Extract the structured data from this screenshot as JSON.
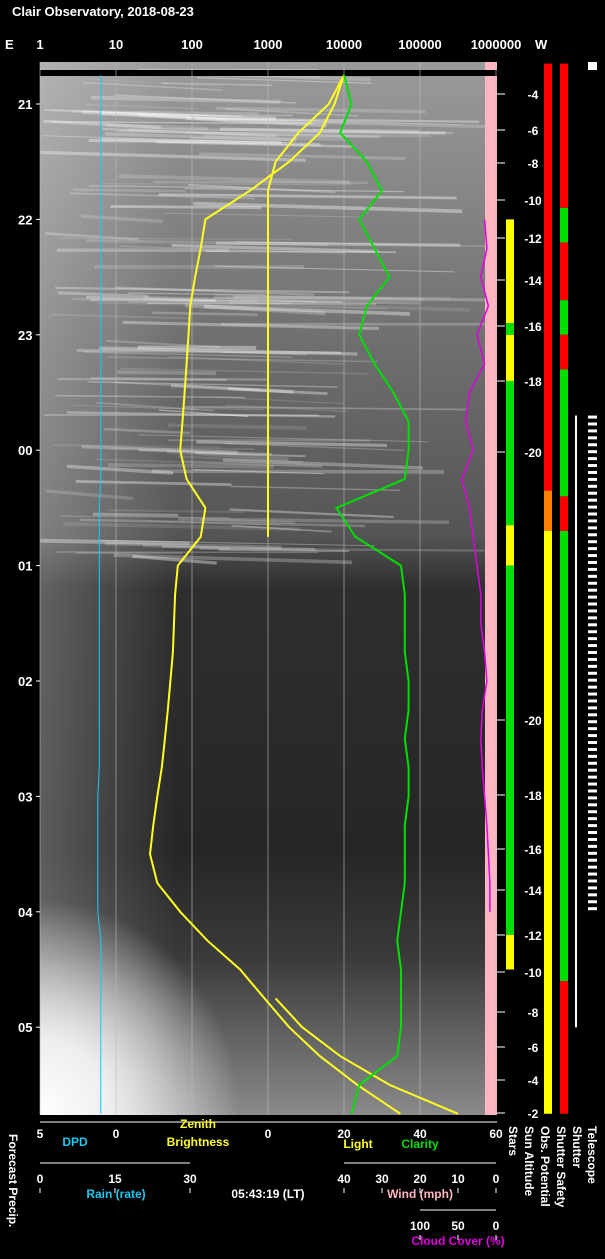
{
  "header": {
    "title": "Clair Observatory, 2018-08-23",
    "east": "E",
    "west": "W"
  },
  "brightness_axis": {
    "ticks": [
      1,
      10,
      100,
      1000,
      10000,
      100000,
      1000000
    ]
  },
  "time_axis": {
    "ticks": [
      21,
      22,
      23,
      {
        "value": 24,
        "label": "00"
      },
      {
        "value": 25,
        "label": "01"
      },
      {
        "value": 26,
        "label": "02"
      },
      {
        "value": 27,
        "label": "03"
      },
      {
        "value": 28,
        "label": "04"
      },
      {
        "value": 29,
        "label": "05"
      }
    ]
  },
  "sun_altitude": {
    "labels": [
      -4,
      -6,
      -8,
      -10,
      -12,
      -14,
      -16,
      -18,
      -20,
      -20,
      -18,
      -16,
      -14,
      -12,
      -10,
      -8,
      -6,
      -4,
      -2
    ]
  },
  "time": [
    20.75,
    21,
    21.25,
    21.5,
    21.75,
    22,
    22.25,
    22.5,
    22.75,
    23,
    23.25,
    23.5,
    23.75,
    24,
    24.25,
    24.5,
    24.75,
    25,
    25.25,
    25.5,
    25.75,
    26,
    26.25,
    26.5,
    26.75,
    27,
    27.25,
    27.5,
    27.75,
    28,
    28.25,
    28.5,
    28.75,
    29,
    29.25,
    29.5,
    29.75
  ],
  "series": {
    "dpd": {
      "color": "#1ec8f0",
      "values": [
        1.0,
        1.0,
        1.0,
        1.0,
        1.0,
        1.0,
        1.0,
        1.0,
        1.0,
        1.0,
        1.0,
        1.0,
        1.0,
        1.0,
        1.0,
        1.1,
        1.1,
        1.1,
        1.1,
        1.1,
        1.1,
        1.1,
        1.1,
        1.1,
        1.1,
        1.2,
        1.2,
        1.2,
        1.2,
        1.2,
        1.0,
        1.0,
        1.0,
        1.0,
        1.0,
        1.0,
        1.0
      ]
    },
    "zenith": {
      "color": "#ffff20",
      "values": [
        10000,
        7500,
        4800,
        1900,
        580,
        150,
        130,
        110,
        95,
        90,
        85,
        80,
        75,
        70,
        85,
        150,
        130,
        65,
        60,
        58,
        56,
        52,
        48,
        44,
        40,
        35,
        31,
        28,
        35,
        70,
        160,
        430,
        900,
        1900,
        4800,
        15000,
        55000
      ]
    },
    "light": {
      "color": "#ffff20",
      "values": [
        20,
        16,
        8,
        2,
        0,
        0,
        0,
        0,
        0,
        0,
        0,
        0,
        0,
        0,
        0,
        0,
        0,
        null,
        null,
        null,
        null,
        null,
        null,
        null,
        null,
        null,
        null,
        null,
        null,
        null,
        null,
        null,
        2,
        9,
        19,
        32,
        50
      ]
    },
    "clarity": {
      "color": "#00e000",
      "values": [
        20,
        22,
        19,
        26,
        30,
        24,
        28,
        32,
        26,
        24,
        28,
        33,
        37,
        37,
        36,
        18,
        23,
        35,
        36,
        36,
        36,
        37,
        37,
        36,
        37,
        37,
        36,
        36,
        36,
        35,
        34,
        35,
        35,
        35,
        34,
        24,
        22
      ]
    },
    "cloud": {
      "color": "#e000e0",
      "values": [
        null,
        null,
        null,
        null,
        null,
        15,
        12,
        20,
        10,
        25,
        15,
        35,
        40,
        30,
        45,
        35,
        30,
        25,
        20,
        20,
        15,
        12,
        18,
        20,
        18,
        15,
        12,
        10,
        8,
        8,
        null,
        null,
        null,
        null,
        null,
        null,
        null
      ]
    }
  },
  "scales": {
    "dpd": {
      "ticks": [
        5,
        0
      ],
      "label": "DPD"
    },
    "zenith": {
      "label": [
        "Zenith",
        "Brightness"
      ]
    },
    "light_clarity": {
      "ticks": [
        0,
        20,
        40,
        60
      ],
      "light_label": "Light",
      "clarity_label": "Clarity"
    },
    "rain": {
      "ticks": [
        0,
        15,
        30
      ],
      "label": "Rain (rate)"
    },
    "wind": {
      "ticks": [
        40,
        30,
        20,
        10,
        0
      ],
      "label": "Wind (mph)"
    },
    "cloud": {
      "ticks": [
        100,
        50,
        0
      ],
      "label": "Cloud Cover (%)"
    },
    "timestamp": "05:43:19 (LT)"
  },
  "side_labels": {
    "left": "Forecast Precip.",
    "right": [
      "Stars",
      "Sun Altitude",
      "Obs. Potential",
      "Shutter Safety",
      "Shutter",
      "Telescope"
    ]
  }
}
